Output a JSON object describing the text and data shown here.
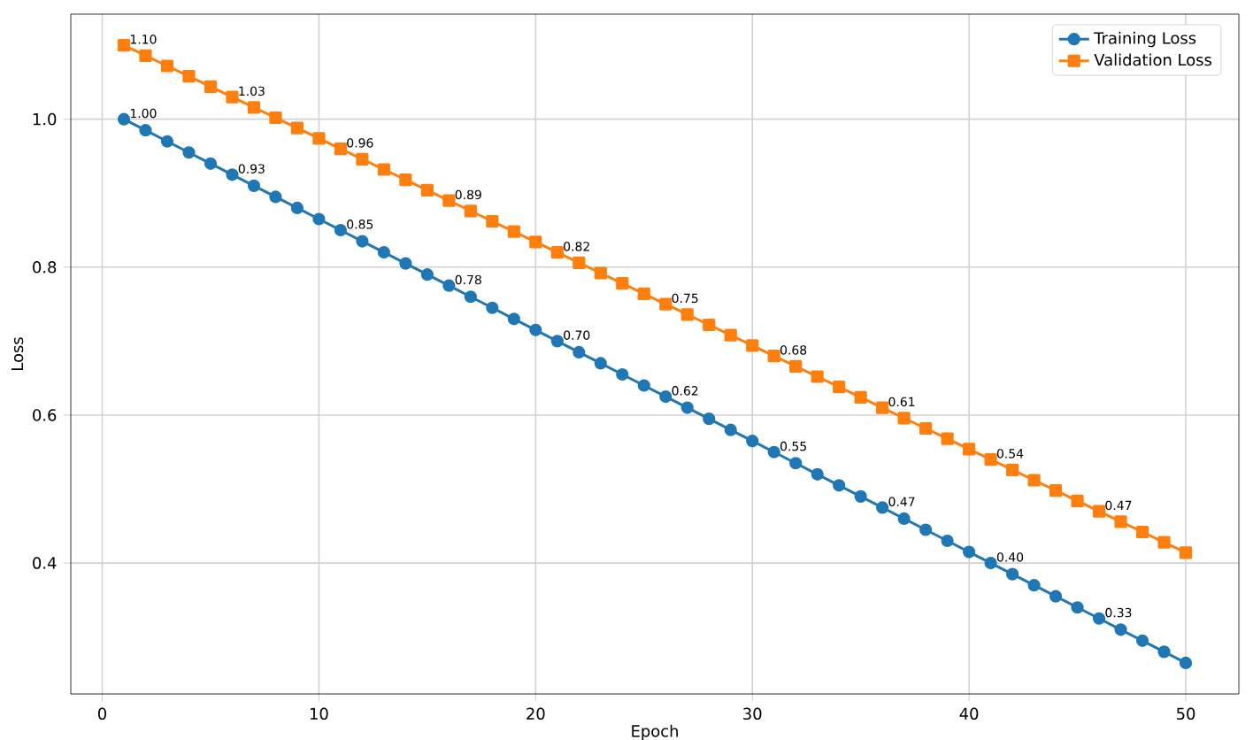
{
  "chart_data": {
    "type": "line",
    "xlabel": "Epoch",
    "ylabel": "Loss",
    "x": [
      1,
      2,
      3,
      4,
      5,
      6,
      7,
      8,
      9,
      10,
      11,
      12,
      13,
      14,
      15,
      16,
      17,
      18,
      19,
      20,
      21,
      22,
      23,
      24,
      25,
      26,
      27,
      28,
      29,
      30,
      31,
      32,
      33,
      34,
      35,
      36,
      37,
      38,
      39,
      40,
      41,
      42,
      43,
      44,
      45,
      46,
      47,
      48,
      49,
      50
    ],
    "series": [
      {
        "name": "Training Loss",
        "color": "#1f77b4",
        "marker": "circle",
        "values": [
          1.0,
          0.985,
          0.97,
          0.955,
          0.94,
          0.925,
          0.91,
          0.895,
          0.88,
          0.865,
          0.85,
          0.835,
          0.82,
          0.805,
          0.79,
          0.775,
          0.76,
          0.745,
          0.73,
          0.715,
          0.7,
          0.685,
          0.67,
          0.655,
          0.64,
          0.625,
          0.61,
          0.595,
          0.58,
          0.565,
          0.55,
          0.535,
          0.52,
          0.505,
          0.49,
          0.475,
          0.46,
          0.445,
          0.43,
          0.415,
          0.4,
          0.385,
          0.37,
          0.355,
          0.34,
          0.325,
          0.31,
          0.295,
          0.28,
          0.265
        ],
        "value_labels": [
          "1.00",
          null,
          null,
          null,
          null,
          "0.93",
          null,
          null,
          null,
          null,
          "0.85",
          null,
          null,
          null,
          null,
          "0.78",
          null,
          null,
          null,
          null,
          "0.70",
          null,
          null,
          null,
          null,
          "0.62",
          null,
          null,
          null,
          null,
          "0.55",
          null,
          null,
          null,
          null,
          "0.47",
          null,
          null,
          null,
          null,
          "0.40",
          null,
          null,
          null,
          null,
          "0.33",
          null,
          null,
          null,
          null
        ]
      },
      {
        "name": "Validation Loss",
        "color": "#ff7f0e",
        "marker": "square",
        "values": [
          1.1,
          1.086,
          1.072,
          1.058,
          1.044,
          1.03,
          1.016,
          1.002,
          0.988,
          0.974,
          0.96,
          0.946,
          0.932,
          0.918,
          0.904,
          0.89,
          0.876,
          0.862,
          0.848,
          0.834,
          0.82,
          0.806,
          0.792,
          0.778,
          0.764,
          0.75,
          0.736,
          0.722,
          0.708,
          0.694,
          0.68,
          0.666,
          0.652,
          0.638,
          0.624,
          0.61,
          0.596,
          0.582,
          0.568,
          0.554,
          0.54,
          0.526,
          0.512,
          0.498,
          0.484,
          0.47,
          0.456,
          0.442,
          0.428,
          0.414
        ],
        "value_labels": [
          "1.10",
          null,
          null,
          null,
          null,
          "1.03",
          null,
          null,
          null,
          null,
          "0.96",
          null,
          null,
          null,
          null,
          "0.89",
          null,
          null,
          null,
          null,
          "0.82",
          null,
          null,
          null,
          null,
          "0.75",
          null,
          null,
          null,
          null,
          "0.68",
          null,
          null,
          null,
          null,
          "0.61",
          null,
          null,
          null,
          null,
          "0.54",
          null,
          null,
          null,
          null,
          "0.47",
          null,
          null,
          null,
          null
        ]
      }
    ],
    "xlim": [
      -1.45,
      52.45
    ],
    "ylim": [
      0.223,
      1.142
    ],
    "xticks": [
      0,
      10,
      20,
      30,
      40,
      50
    ],
    "yticks": [
      {
        "value": 0.4,
        "label": "0.4"
      },
      {
        "value": 0.6,
        "label": "0.6"
      },
      {
        "value": 0.8,
        "label": "0.8"
      },
      {
        "value": 1.0,
        "label": "1.0"
      }
    ],
    "grid": true,
    "legend": "top right"
  }
}
